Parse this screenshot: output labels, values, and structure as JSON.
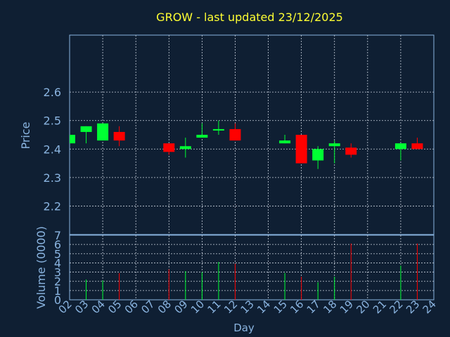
{
  "title": "GROW - last updated 23/12/2025",
  "colors": {
    "background": "#0f1f33",
    "frame": "#8ab4e0",
    "grid": "#c8d0dc",
    "up": "#00ff33",
    "down": "#ff0000",
    "title": "#ffff33",
    "axis_text": "#8ab4e0"
  },
  "chart_data": [
    {
      "type": "candlestick",
      "ylabel": "Price",
      "xlabel": "",
      "ylim": [
        2.1,
        2.8
      ],
      "yticks": [
        2.2,
        2.3,
        2.4,
        2.5,
        2.6
      ],
      "grid": true,
      "candles": [
        {
          "day": "02",
          "open": 2.42,
          "high": 2.45,
          "low": 2.42,
          "close": 2.45
        },
        {
          "day": "03",
          "open": 2.46,
          "high": 2.48,
          "low": 2.42,
          "close": 2.48
        },
        {
          "day": "04",
          "open": 2.43,
          "high": 2.49,
          "low": 2.43,
          "close": 2.49
        },
        {
          "day": "05",
          "open": 2.46,
          "high": 2.48,
          "low": 2.41,
          "close": 2.43
        },
        {
          "day": "08",
          "open": 2.42,
          "high": 2.42,
          "low": 2.38,
          "close": 2.39
        },
        {
          "day": "09",
          "open": 2.4,
          "high": 2.44,
          "low": 2.37,
          "close": 2.41
        },
        {
          "day": "10",
          "open": 2.44,
          "high": 2.49,
          "low": 2.44,
          "close": 2.45
        },
        {
          "day": "11",
          "open": 2.465,
          "high": 2.5,
          "low": 2.45,
          "close": 2.47
        },
        {
          "day": "12",
          "open": 2.47,
          "high": 2.49,
          "low": 2.43,
          "close": 2.43
        },
        {
          "day": "15",
          "open": 2.42,
          "high": 2.45,
          "low": 2.42,
          "close": 2.43
        },
        {
          "day": "16",
          "open": 2.45,
          "high": 2.45,
          "low": 2.35,
          "close": 2.35
        },
        {
          "day": "17",
          "open": 2.36,
          "high": 2.41,
          "low": 2.33,
          "close": 2.4
        },
        {
          "day": "18",
          "open": 2.41,
          "high": 2.43,
          "low": 2.35,
          "close": 2.42
        },
        {
          "day": "19",
          "open": 2.405,
          "high": 2.42,
          "low": 2.37,
          "close": 2.38
        },
        {
          "day": "22",
          "open": 2.4,
          "high": 2.42,
          "low": 2.36,
          "close": 2.42
        },
        {
          "day": "23",
          "open": 2.42,
          "high": 2.44,
          "low": 2.4,
          "close": 2.4
        }
      ]
    },
    {
      "type": "bar",
      "ylabel": "Volume (0000)",
      "xlabel": "Day",
      "ylim": [
        0,
        7
      ],
      "yticks": [
        0,
        1,
        2,
        3,
        4,
        5,
        6,
        7
      ],
      "categories": [
        "02",
        "03",
        "04",
        "05",
        "06",
        "07",
        "08",
        "09",
        "10",
        "11",
        "12",
        "13",
        "14",
        "15",
        "16",
        "17",
        "18",
        "19",
        "20",
        "21",
        "22",
        "23",
        "24"
      ],
      "values": [
        {
          "day": "03",
          "value": 2.2,
          "direction": "up"
        },
        {
          "day": "04",
          "value": 2.1,
          "direction": "up"
        },
        {
          "day": "05",
          "value": 2.9,
          "direction": "down"
        },
        {
          "day": "08",
          "value": 3.3,
          "direction": "down"
        },
        {
          "day": "09",
          "value": 3.1,
          "direction": "up"
        },
        {
          "day": "10",
          "value": 3.0,
          "direction": "up"
        },
        {
          "day": "11",
          "value": 4.1,
          "direction": "up"
        },
        {
          "day": "12",
          "value": 3.9,
          "direction": "down"
        },
        {
          "day": "15",
          "value": 2.9,
          "direction": "up"
        },
        {
          "day": "16",
          "value": 2.5,
          "direction": "down"
        },
        {
          "day": "17",
          "value": 1.9,
          "direction": "up"
        },
        {
          "day": "18",
          "value": 2.5,
          "direction": "up"
        },
        {
          "day": "19",
          "value": 6.1,
          "direction": "down"
        },
        {
          "day": "22",
          "value": 3.7,
          "direction": "up"
        },
        {
          "day": "23",
          "value": 6.1,
          "direction": "down"
        }
      ]
    }
  ]
}
